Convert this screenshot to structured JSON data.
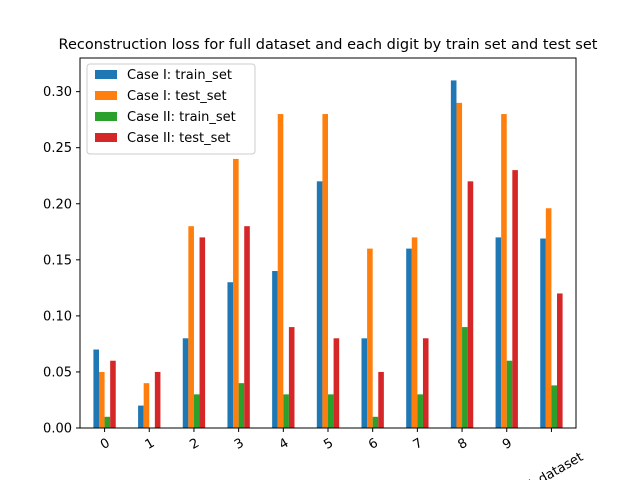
{
  "chart_data": {
    "type": "bar",
    "title": "Reconstruction loss for full dataset and each digit by train set and test set",
    "xlabel": "",
    "ylabel": "",
    "categories": [
      "0",
      "1",
      "2",
      "3",
      "4",
      "5",
      "6",
      "7",
      "8",
      "9",
      "full_dataset"
    ],
    "ylim": [
      0,
      0.33
    ],
    "yticks": [
      "0.00",
      "0.05",
      "0.10",
      "0.15",
      "0.20",
      "0.25",
      "0.30"
    ],
    "grid": false,
    "legend_position": "top-left",
    "series": [
      {
        "name": "Case I: train_set",
        "color": "#1f77b4",
        "values": [
          0.07,
          0.02,
          0.08,
          0.13,
          0.14,
          0.22,
          0.08,
          0.16,
          0.31,
          0.17,
          0.169
        ]
      },
      {
        "name": "Case I: test_set",
        "color": "#ff7f0e",
        "values": [
          0.05,
          0.04,
          0.18,
          0.24,
          0.28,
          0.28,
          0.16,
          0.17,
          0.29,
          0.28,
          0.196
        ]
      },
      {
        "name": "Case II: train_set",
        "color": "#2ca02c",
        "values": [
          0.01,
          0.0,
          0.03,
          0.04,
          0.03,
          0.03,
          0.01,
          0.03,
          0.09,
          0.06,
          0.038
        ]
      },
      {
        "name": "Case II: test_set",
        "color": "#d62728",
        "values": [
          0.06,
          0.05,
          0.17,
          0.18,
          0.09,
          0.08,
          0.05,
          0.08,
          0.22,
          0.23,
          0.12
        ]
      }
    ]
  }
}
